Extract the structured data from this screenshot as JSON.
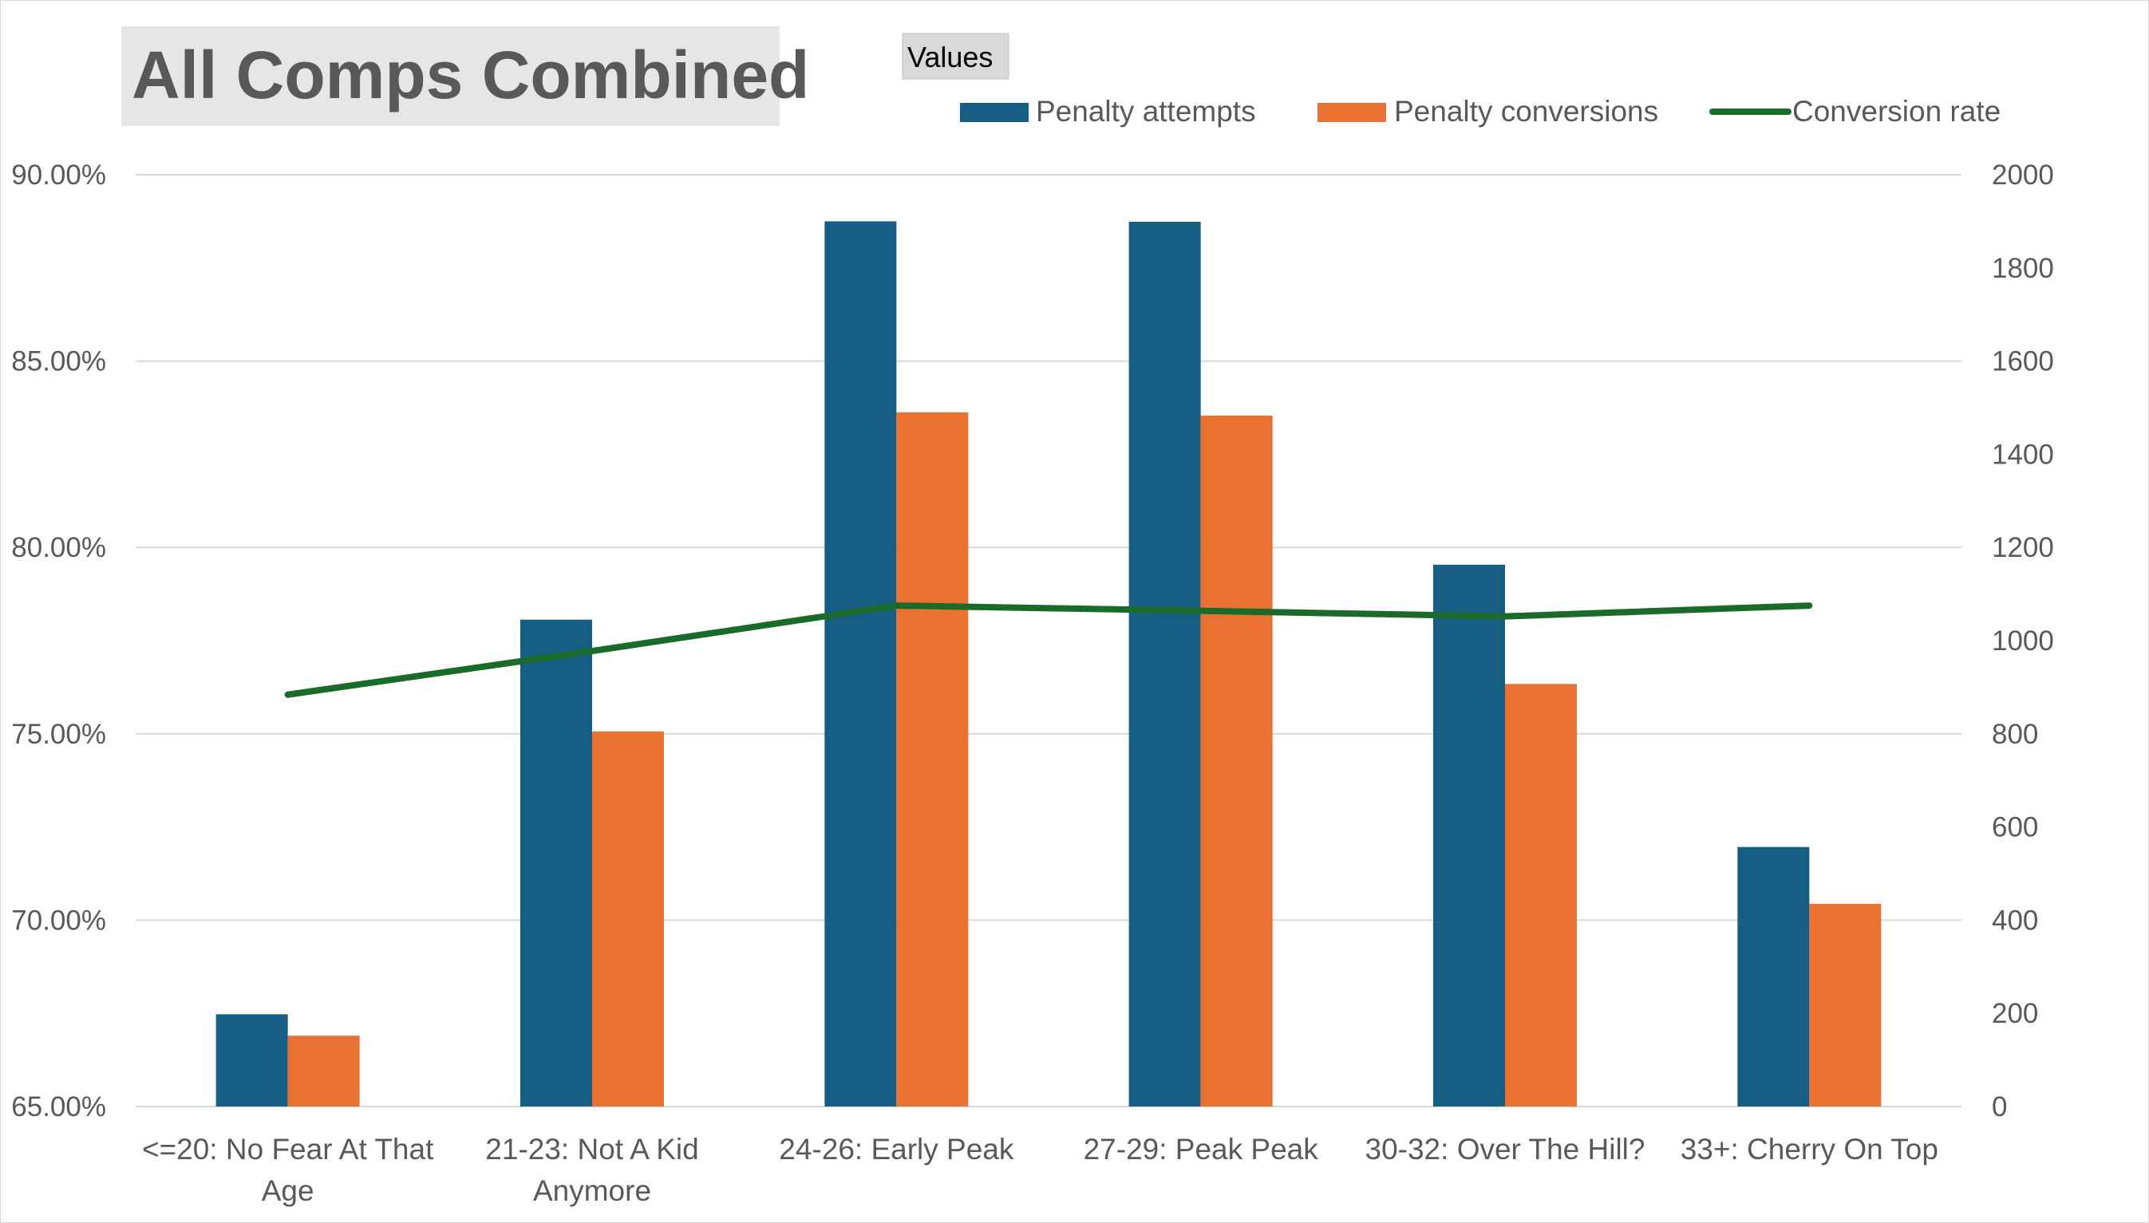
{
  "chart_data": {
    "type": "bar",
    "title": "All Comps Combined",
    "legend_title": "Values",
    "legend_position": "top-right",
    "categories": [
      "<=20: No Fear At That Age",
      "21-23: Not A Kid Anymore",
      "24-26: Early Peak",
      "27-29: Peak Peak",
      "30-32: Over The Hill?",
      "33+: Cherry On Top"
    ],
    "category_lines": [
      [
        "<=20: No Fear At That",
        "Age"
      ],
      [
        "21-23: Not A Kid",
        "Anymore"
      ],
      [
        "24-26: Early Peak"
      ],
      [
        "27-29: Peak Peak"
      ],
      [
        "30-32: Over The Hill?"
      ],
      [
        "33+: Cherry On Top"
      ]
    ],
    "series": [
      {
        "name": "Penalty attempts",
        "type": "bar",
        "axis": "right",
        "color": "#165e83",
        "values": [
          198,
          1045,
          1900,
          1899,
          1163,
          557
        ]
      },
      {
        "name": "Penalty conversions",
        "type": "bar",
        "axis": "right",
        "color": "#e97132",
        "values": [
          152,
          805,
          1490,
          1483,
          907,
          435
        ]
      },
      {
        "name": "Conversion rate",
        "type": "line",
        "axis": "left",
        "color": "#1a6b2a",
        "values": [
          76.05,
          77.22,
          78.44,
          78.3,
          78.15,
          78.44
        ]
      }
    ],
    "left_axis": {
      "min": 65,
      "max": 90,
      "ticks": [
        65,
        70,
        75,
        80,
        85,
        90
      ],
      "tick_labels": [
        "65.00%",
        "70.00%",
        "75.00%",
        "80.00%",
        "85.00%",
        "90.00%"
      ]
    },
    "right_axis": {
      "min": 0,
      "max": 2000,
      "ticks": [
        0,
        200,
        400,
        600,
        800,
        1000,
        1200,
        1400,
        1600,
        1800,
        2000
      ],
      "tick_labels": [
        "0",
        "200",
        "400",
        "600",
        "800",
        "1000",
        "1200",
        "1400",
        "1600",
        "1800",
        "2000"
      ]
    },
    "grid": true
  },
  "colors": {
    "grid": "#d9d9d9",
    "text": "#595959",
    "title_bg": "#e6e6e6",
    "legend_title_bg": "#d9d9d9"
  }
}
